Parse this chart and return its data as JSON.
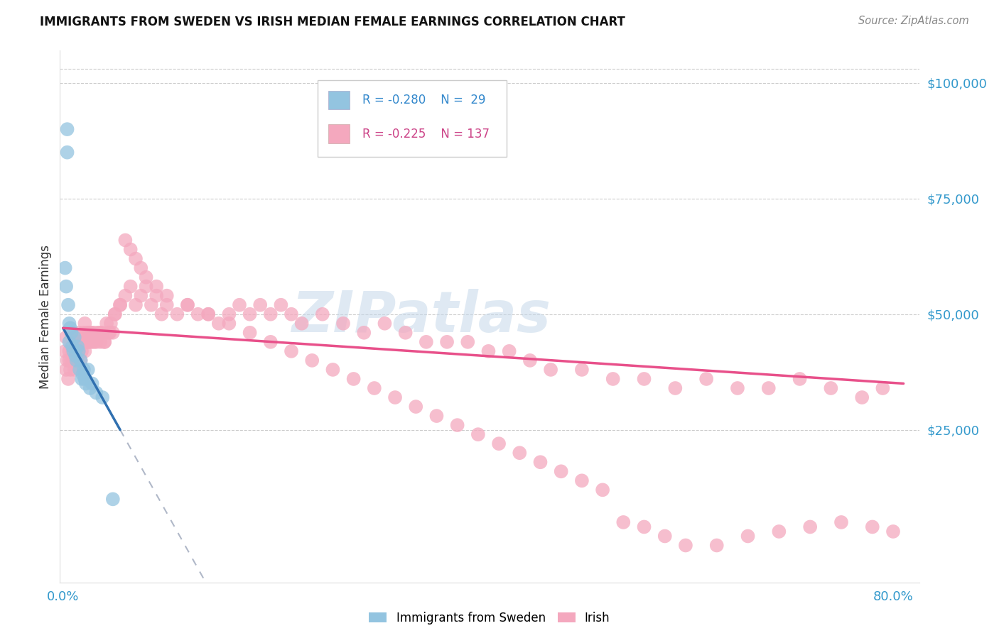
{
  "title": "IMMIGRANTS FROM SWEDEN VS IRISH MEDIAN FEMALE EARNINGS CORRELATION CHART",
  "source": "Source: ZipAtlas.com",
  "ylabel": "Median Female Earnings",
  "y_tick_labels": [
    "$25,000",
    "$50,000",
    "$75,000",
    "$100,000"
  ],
  "y_tick_values": [
    25000,
    50000,
    75000,
    100000
  ],
  "y_max": 107000,
  "y_min": -8000,
  "x_min": -0.003,
  "x_max": 0.825,
  "watermark": "ZIPatlas",
  "blue_color": "#93c4e0",
  "pink_color": "#f4a8be",
  "blue_line_color": "#3070b0",
  "pink_line_color": "#e8508a",
  "blue_dash_color": "#b0b8c8",
  "sweden_x": [
    0.002,
    0.003,
    0.004,
    0.004,
    0.005,
    0.006,
    0.006,
    0.007,
    0.008,
    0.009,
    0.01,
    0.011,
    0.012,
    0.013,
    0.014,
    0.015,
    0.016,
    0.017,
    0.018,
    0.019,
    0.02,
    0.021,
    0.022,
    0.024,
    0.026,
    0.028,
    0.032,
    0.038,
    0.048
  ],
  "sweden_y": [
    60000,
    56000,
    85000,
    90000,
    52000,
    48000,
    44000,
    47000,
    46000,
    43000,
    42000,
    45000,
    41000,
    40000,
    43000,
    42000,
    38000,
    40000,
    36000,
    37000,
    38000,
    36000,
    35000,
    38000,
    34000,
    35000,
    33000,
    32000,
    10000
  ],
  "irish_x": [
    0.002,
    0.003,
    0.004,
    0.005,
    0.006,
    0.007,
    0.008,
    0.009,
    0.01,
    0.011,
    0.012,
    0.013,
    0.014,
    0.015,
    0.016,
    0.017,
    0.018,
    0.019,
    0.02,
    0.021,
    0.022,
    0.023,
    0.024,
    0.025,
    0.026,
    0.027,
    0.028,
    0.03,
    0.032,
    0.034,
    0.036,
    0.038,
    0.04,
    0.042,
    0.044,
    0.046,
    0.048,
    0.05,
    0.055,
    0.06,
    0.065,
    0.07,
    0.075,
    0.08,
    0.085,
    0.09,
    0.095,
    0.1,
    0.11,
    0.12,
    0.13,
    0.14,
    0.15,
    0.16,
    0.17,
    0.18,
    0.19,
    0.2,
    0.21,
    0.22,
    0.23,
    0.25,
    0.27,
    0.29,
    0.31,
    0.33,
    0.35,
    0.37,
    0.39,
    0.41,
    0.43,
    0.45,
    0.47,
    0.5,
    0.53,
    0.56,
    0.59,
    0.62,
    0.65,
    0.68,
    0.71,
    0.74,
    0.77,
    0.79,
    0.003,
    0.006,
    0.009,
    0.012,
    0.015,
    0.018,
    0.021,
    0.024,
    0.027,
    0.03,
    0.035,
    0.04,
    0.045,
    0.05,
    0.055,
    0.06,
    0.065,
    0.07,
    0.075,
    0.08,
    0.09,
    0.1,
    0.12,
    0.14,
    0.16,
    0.18,
    0.2,
    0.22,
    0.24,
    0.26,
    0.28,
    0.3,
    0.32,
    0.34,
    0.36,
    0.38,
    0.4,
    0.42,
    0.44,
    0.46,
    0.48,
    0.5,
    0.52,
    0.54,
    0.56,
    0.58,
    0.6,
    0.63,
    0.66,
    0.69,
    0.72,
    0.75,
    0.78,
    0.8
  ],
  "irish_y": [
    42000,
    38000,
    40000,
    36000,
    40000,
    38000,
    40000,
    42000,
    40000,
    38000,
    42000,
    44000,
    40000,
    42000,
    44000,
    40000,
    42000,
    44000,
    46000,
    42000,
    44000,
    46000,
    44000,
    46000,
    44000,
    46000,
    44000,
    46000,
    44000,
    46000,
    44000,
    46000,
    44000,
    48000,
    46000,
    48000,
    46000,
    50000,
    52000,
    54000,
    56000,
    52000,
    54000,
    56000,
    52000,
    54000,
    50000,
    52000,
    50000,
    52000,
    50000,
    50000,
    48000,
    50000,
    52000,
    50000,
    52000,
    50000,
    52000,
    50000,
    48000,
    50000,
    48000,
    46000,
    48000,
    46000,
    44000,
    44000,
    44000,
    42000,
    42000,
    40000,
    38000,
    38000,
    36000,
    36000,
    34000,
    36000,
    34000,
    34000,
    36000,
    34000,
    32000,
    34000,
    45000,
    42000,
    46000,
    44000,
    46000,
    44000,
    48000,
    44000,
    46000,
    44000,
    46000,
    44000,
    46000,
    50000,
    52000,
    66000,
    64000,
    62000,
    60000,
    58000,
    56000,
    54000,
    52000,
    50000,
    48000,
    46000,
    44000,
    42000,
    40000,
    38000,
    36000,
    34000,
    32000,
    30000,
    28000,
    26000,
    24000,
    22000,
    20000,
    18000,
    16000,
    14000,
    12000,
    5000,
    4000,
    2000,
    0,
    0,
    2000,
    3000,
    4000,
    5000,
    4000,
    3000
  ]
}
